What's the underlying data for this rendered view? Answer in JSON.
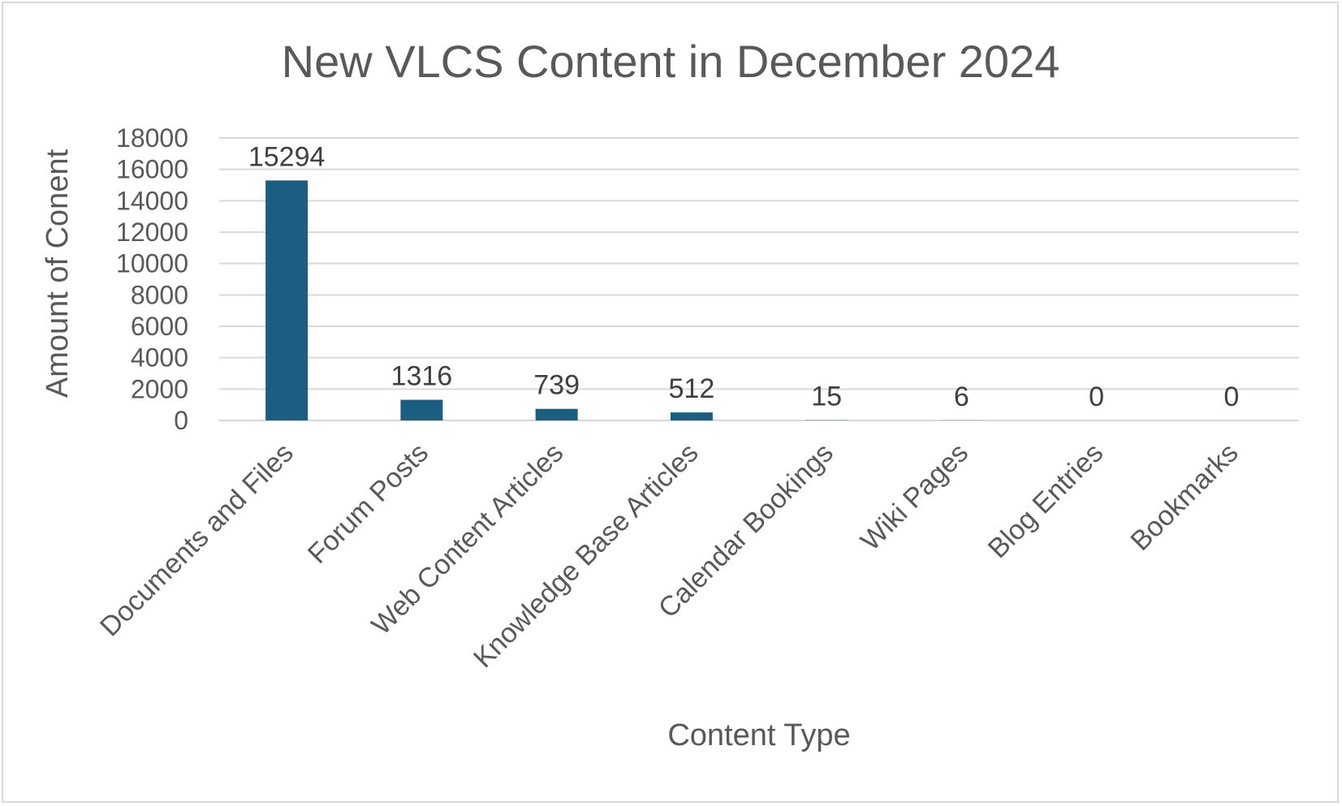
{
  "chart_data": {
    "type": "bar",
    "title": "New VLCS Content in December 2024",
    "xlabel": "Content Type",
    "ylabel": "Amount of Conent",
    "categories": [
      "Documents and Files",
      "Forum Posts",
      "Web Content Articles",
      "Knowledge Base Articles",
      "Calendar Bookings",
      "Wiki Pages",
      "Blog Entries",
      "Bookmarks"
    ],
    "values": [
      15294,
      1316,
      739,
      512,
      15,
      6,
      0,
      0
    ],
    "data_labels": [
      "15294",
      "1316",
      "739",
      "512",
      "15",
      "6",
      "0",
      "0"
    ],
    "ylim": [
      0,
      18000
    ],
    "yticks": [
      0,
      2000,
      4000,
      6000,
      8000,
      10000,
      12000,
      14000,
      16000,
      18000
    ],
    "grid": true,
    "legend": "none",
    "bar_color": "#1a5f82",
    "grid_color": "#d9d9d9"
  }
}
